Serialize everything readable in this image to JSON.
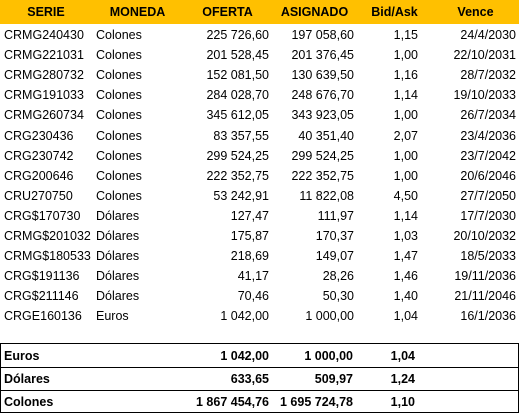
{
  "table": {
    "header": [
      "SERIE",
      "MONEDA",
      "OFERTA",
      "ASIGNADO",
      "Bid/Ask",
      "Vence"
    ],
    "rows": [
      [
        "CRMG240430",
        "Colones",
        "225 726,60",
        "197 058,60",
        "1,15",
        "24/4/2030"
      ],
      [
        "CRMG221031",
        "Colones",
        "201 528,45",
        "201 376,45",
        "1,00",
        "22/10/2031"
      ],
      [
        "CRMG280732",
        "Colones",
        "152 081,50",
        "130 639,50",
        "1,16",
        "28/7/2032"
      ],
      [
        "CRMG191033",
        "Colones",
        "284 028,70",
        "248 676,70",
        "1,14",
        "19/10/2033"
      ],
      [
        "CRMG260734",
        "Colones",
        "345 612,05",
        "343 923,05",
        "1,00",
        "26/7/2034"
      ],
      [
        "CRG230436",
        "Colones",
        "83 357,55",
        "40 351,40",
        "2,07",
        "23/4/2036"
      ],
      [
        "CRG230742",
        "Colones",
        "299 524,25",
        "299 524,25",
        "1,00",
        "23/7/2042"
      ],
      [
        "CRG200646",
        "Colones",
        "222 352,75",
        "222 352,75",
        "1,00",
        "20/6/2046"
      ],
      [
        "CRU270750",
        "Colones",
        "53 242,91",
        "11 822,08",
        "4,50",
        "27/7/2050"
      ],
      [
        "CRG$170730",
        "Dólares",
        "127,47",
        "111,97",
        "1,14",
        "17/7/2030"
      ],
      [
        "CRMG$201032",
        "Dólares",
        "175,87",
        "170,37",
        "1,03",
        "20/10/2032"
      ],
      [
        "CRMG$180533",
        "Dólares",
        "218,69",
        "149,07",
        "1,47",
        "18/5/2033"
      ],
      [
        "CRG$191136",
        "Dólares",
        "41,17",
        "28,26",
        "1,46",
        "19/11/2036"
      ],
      [
        "CRG$211146",
        "Dólares",
        "70,46",
        "50,30",
        "1,40",
        "21/11/2046"
      ],
      [
        "CRGE160136",
        "Euros",
        "1 042,00",
        "1 000,00",
        "1,04",
        "16/1/2036"
      ]
    ]
  },
  "summary": {
    "rows": [
      [
        "Euros",
        "1 042,00",
        "1 000,00",
        "1,04"
      ],
      [
        "Dólares",
        "633,65",
        "509,97",
        "1,24"
      ],
      [
        "Colones",
        "1 867 454,76",
        "1 695 724,78",
        "1,10"
      ]
    ]
  }
}
